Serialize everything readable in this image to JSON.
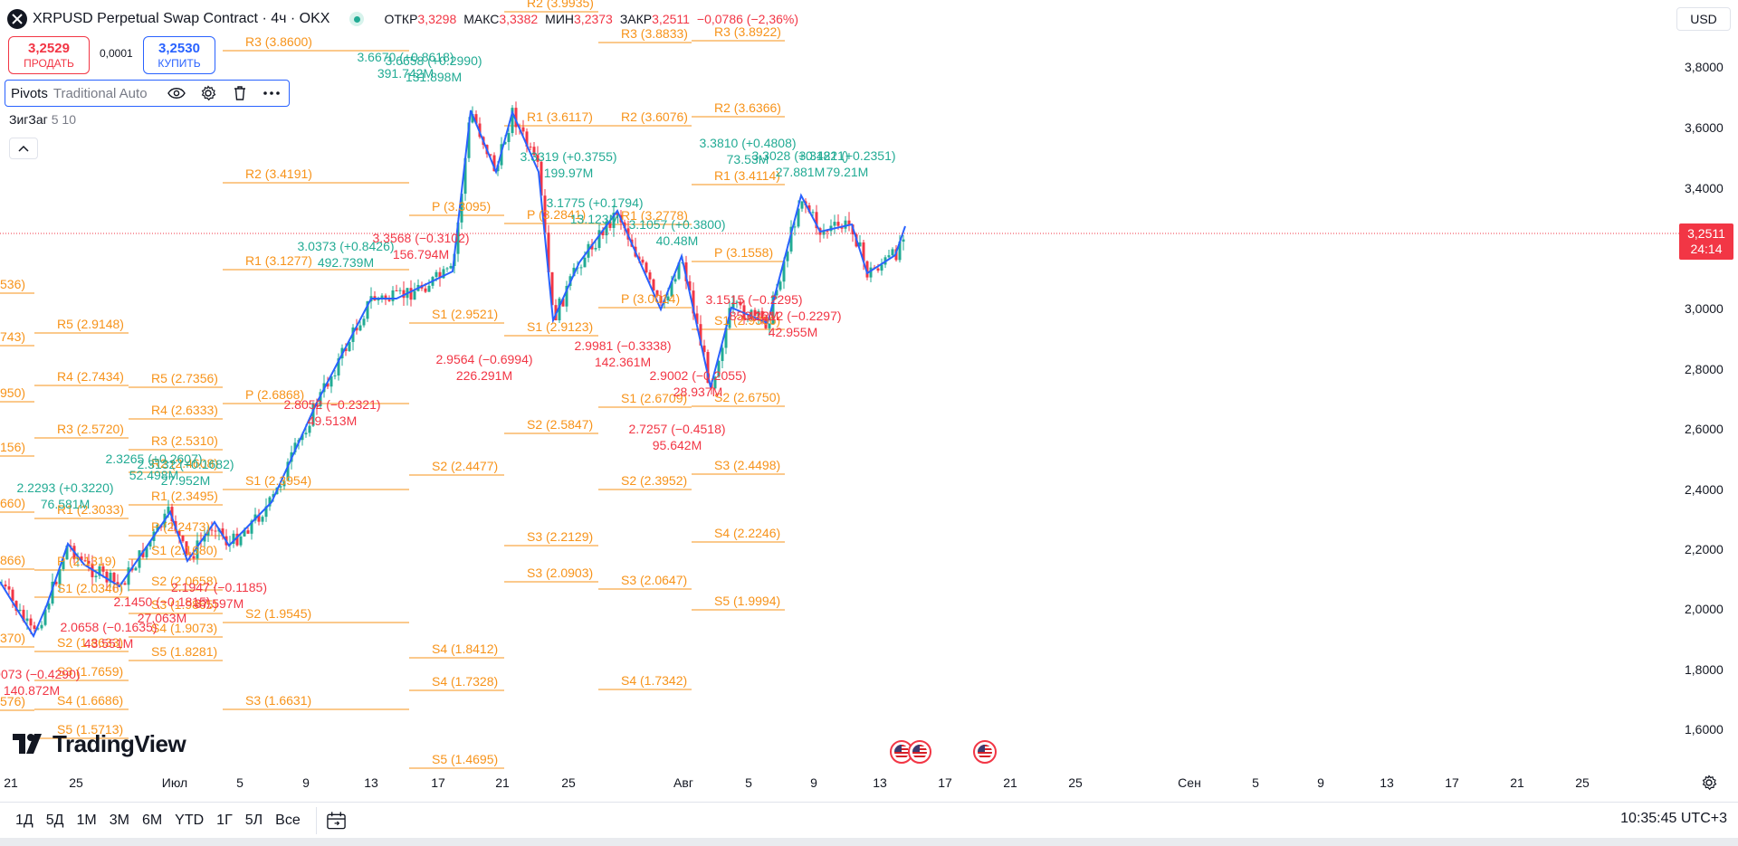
{
  "header": {
    "symbol_title": "XRPUSD Perpetual Swap Contract · 4ч · OKX",
    "ohlc": [
      {
        "key": "ОТКР",
        "value": "3,3298"
      },
      {
        "key": "МАКС",
        "value": "3,3382"
      },
      {
        "key": "МИН",
        "value": "3,2373"
      },
      {
        "key": "ЗАКР",
        "value": "3,2511"
      }
    ],
    "change": "−0,0786 (−2,36%)",
    "sell_price": "3,2529",
    "sell_label": "ПРОДАТЬ",
    "spread": "0,0001",
    "buy_price": "3,2530",
    "buy_label": "КУПИТЬ",
    "currency": "USD"
  },
  "indicators": {
    "pivots_name": "Pivots",
    "pivots_params": "Traditional Auto",
    "zigzag_name": "ЗигЗаг",
    "zigzag_params": "5 10"
  },
  "price_scale": {
    "ticks": [
      "3,8000",
      "3,6000",
      "3,4000",
      "3,2000",
      "3,0000",
      "2,8000",
      "2,6000",
      "2,4000",
      "2,2000",
      "2,0000",
      "1,8000",
      "1,6000"
    ],
    "last_price": "3,2511",
    "countdown": "24:14"
  },
  "time_axis": {
    "ticks": [
      "21",
      "25",
      "Июл",
      "5",
      "9",
      "13",
      "17",
      "21",
      "25",
      "Авг",
      "5",
      "9",
      "13",
      "17",
      "21",
      "25",
      "Сен",
      "5",
      "9",
      "13",
      "17",
      "21",
      "25"
    ]
  },
  "pivot_levels": [
    {
      "text": "536)"
    },
    {
      "text": "743)"
    },
    {
      "text": "950)"
    },
    {
      "text": "156)"
    },
    {
      "text": "660)"
    },
    {
      "text": "866)"
    },
    {
      "text": "370)"
    },
    {
      "text": "576)"
    },
    {
      "text": "R5 (2.9148)"
    },
    {
      "text": "R4 (2.7434)"
    },
    {
      "text": "R3 (2.5720)"
    },
    {
      "text": "R1 (2.3033)"
    },
    {
      "text": "P (2.1319)"
    },
    {
      "text": "S1 (2.0346)"
    },
    {
      "text": "S2 (1.8633)"
    },
    {
      "text": "S3 (1.7659)"
    },
    {
      "text": "S4 (1.6686)"
    },
    {
      "text": "S5 (1.5713)"
    },
    {
      "text": "R5 (2.7356)"
    },
    {
      "text": "R4 (2.6333)"
    },
    {
      "text": "R3 (2.5310)"
    },
    {
      "text": "R2 (2.4608)"
    },
    {
      "text": "R1 (2.3495)"
    },
    {
      "text": "P (2.2473)"
    },
    {
      "text": "S1 (2.1680)"
    },
    {
      "text": "S2 (2.0658)"
    },
    {
      "text": "S3 (1.9865)"
    },
    {
      "text": "S4 (1.9073)"
    },
    {
      "text": "S5 (1.8281)"
    },
    {
      "text": "R3 (3.8600)"
    },
    {
      "text": "R2 (3.4191)"
    },
    {
      "text": "R1 (3.1277)"
    },
    {
      "text": "P (2.6868)"
    },
    {
      "text": "S1 (2.3954)"
    },
    {
      "text": "S2 (1.9545)"
    },
    {
      "text": "S3 (1.6631)"
    },
    {
      "text": "P (3.3095)"
    },
    {
      "text": "S1 (2.9521)"
    },
    {
      "text": "S2 (2.4477)"
    },
    {
      "text": "S4 (1.8412)"
    },
    {
      "text": "S4 (1.7328)"
    },
    {
      "text": "R2 (3.9935)"
    },
    {
      "text": "R1 (3.6117)"
    },
    {
      "text": "P (3.2841)"
    },
    {
      "text": "S1 (2.9123)"
    },
    {
      "text": "S2 (2.5847)"
    },
    {
      "text": "S3 (2.2129)"
    },
    {
      "text": "S3 (2.0903)"
    },
    {
      "text": "R3 (3.8833)"
    },
    {
      "text": "R2 (3.6076)"
    },
    {
      "text": "R1 (3.2778)"
    },
    {
      "text": "P (3.0014)"
    },
    {
      "text": "S1 (2.6709)"
    },
    {
      "text": "S2 (2.3952)"
    },
    {
      "text": "S3 (2.0647)"
    },
    {
      "text": "S4 (1.7342)"
    },
    {
      "text": "R3 (3.8922)"
    },
    {
      "text": "R2 (3.6366)"
    },
    {
      "text": "R1 (3.4114)"
    },
    {
      "text": "P (3.1558)"
    },
    {
      "text": "S1 (2.9306)"
    },
    {
      "text": "S2 (2.6750)"
    },
    {
      "text": "S3 (2.4498)"
    },
    {
      "text": "S4 (2.2246)"
    },
    {
      "text": "S5 (1.9994)"
    },
    {
      "text": "S5 (1.4695)"
    }
  ],
  "zigzag_labels": [
    {
      "lines": [
        "3.6670 (+0.8618)",
        "391.742M"
      ],
      "color": "green"
    },
    {
      "lines": [
        "3.6658 (+0.2990)",
        "131.898M"
      ],
      "color": "green"
    },
    {
      "lines": [
        "3.3319 (+0.3755)",
        "199.97M"
      ],
      "color": "green"
    },
    {
      "lines": [
        "3.0373 (+0.8426)",
        "492.739M"
      ],
      "color": "green"
    },
    {
      "lines": [
        "3.3568 (−0.3102)",
        "156.794M"
      ],
      "color": "red"
    },
    {
      "lines": [
        "3.1775 (+0.1794)",
        "13.123M"
      ],
      "color": "green"
    },
    {
      "lines": [
        "3.1057 (+0.3800)",
        "40.48M"
      ],
      "color": "green"
    },
    {
      "lines": [
        "3.3810 (+0.4808)",
        "73.53M"
      ],
      "color": "green"
    },
    {
      "lines": [
        "3.3028 (+0.1821)",
        "27.881M"
      ],
      "color": "green"
    },
    {
      "lines": [
        "3.3421 (+0.2351)",
        "79.21M"
      ],
      "color": "green"
    },
    {
      "lines": [
        "3.1515 (−0.2295)",
        "85.425M"
      ],
      "color": "red"
    },
    {
      "lines": [
        "3.1212 (−0.2297)",
        "42.955M"
      ],
      "color": "red"
    },
    {
      "lines": [
        "2.9564 (−0.6994)",
        "226.291M"
      ],
      "color": "red"
    },
    {
      "lines": [
        "2.9981 (−0.3338)",
        "142.361M"
      ],
      "color": "red"
    },
    {
      "lines": [
        "2.9002 (−0.2055)",
        "28.937M"
      ],
      "color": "red"
    },
    {
      "lines": [
        "2.7257 (−0.4518)",
        "95.642M"
      ],
      "color": "red"
    },
    {
      "lines": [
        "2.8052 (−0.2321)",
        "49.513M"
      ],
      "color": "red"
    },
    {
      "lines": [
        "2.3265 (+0.2607)",
        "52.498M"
      ],
      "color": "green"
    },
    {
      "lines": [
        "2.3132 (+0.1682)",
        "27.952M"
      ],
      "color": "green"
    },
    {
      "lines": [
        "2.2293 (+0.3220)",
        "76.581M"
      ],
      "color": "green"
    },
    {
      "lines": [
        "2.1947 (−0.1185)",
        "37.597M"
      ],
      "color": "red"
    },
    {
      "lines": [
        "2.1450 (−0.1815)",
        "27.063M"
      ],
      "color": "red"
    },
    {
      "lines": [
        "2.0658 (−0.1635)",
        "43.551M"
      ],
      "color": "red"
    },
    {
      "lines": [
        "1.9073 (−0.4290)",
        "140.872M"
      ],
      "color": "red"
    }
  ],
  "range_buttons": [
    "1Д",
    "5Д",
    "1М",
    "3М",
    "6М",
    "YTD",
    "1Г",
    "5Л",
    "Все"
  ],
  "clock": "10:35:45 UTC+3",
  "branding": {
    "logo_text": "TradingView"
  },
  "colors": {
    "up": "#22ab94",
    "down": "#f23645",
    "zigzag": "#2962ff",
    "pivot": "#f7931a",
    "buy": "#2962ff",
    "sell": "#f23645"
  }
}
